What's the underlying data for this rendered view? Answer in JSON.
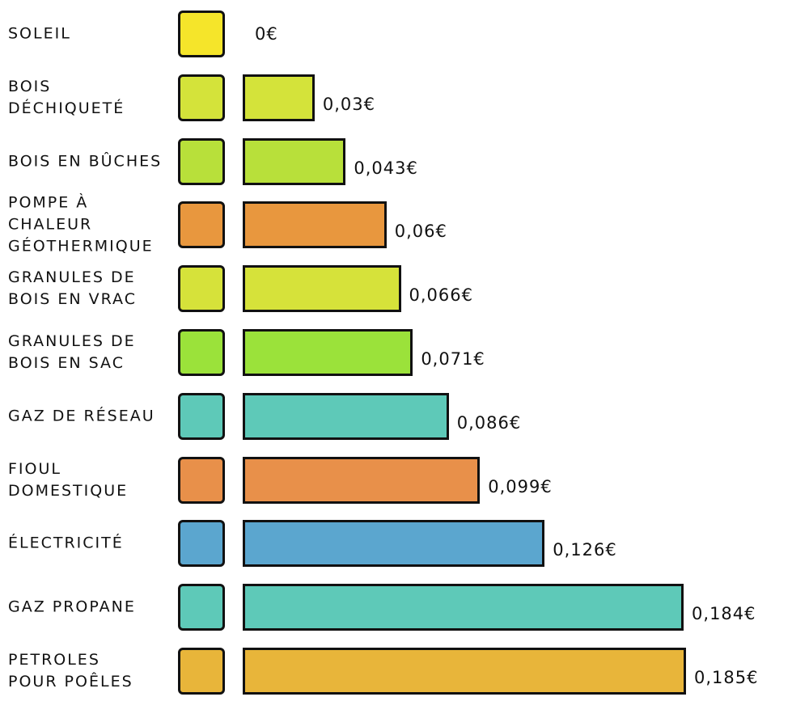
{
  "chart_data": {
    "type": "bar",
    "categories": [
      "SOLEIL",
      "BOIS\nDÉCHIQUETÉ",
      "BOIS EN BÛCHES",
      "POMPE À CHALEUR\nGÉOTHERMIQUE",
      "GRANULES DE\nBOIS EN VRAC",
      "GRANULES DE\nBOIS EN SAC",
      "GAZ DE RÉSEAU",
      "FIOUL\nDOMESTIQUE",
      "ÉLECTRICITÉ",
      "GAZ PROPANE",
      "PETROLES\nPOUR POÊLES"
    ],
    "values": [
      0,
      0.03,
      0.043,
      0.06,
      0.066,
      0.071,
      0.086,
      0.099,
      0.126,
      0.184,
      0.185
    ],
    "value_labels": [
      "0€",
      "0,03€",
      "0,043€",
      "0,06€",
      "0,066€",
      "0,071€",
      "0,086€",
      "0,099€",
      "0,126€",
      "0,184€",
      "0,185€"
    ],
    "colors": [
      "#f5e52a",
      "#d4e33a",
      "#b8e03a",
      "#e8973e",
      "#d6e23a",
      "#9be23a",
      "#5ec9b8",
      "#e8904a",
      "#5ba6cf",
      "#5ec9b8",
      "#e8b53a"
    ]
  }
}
